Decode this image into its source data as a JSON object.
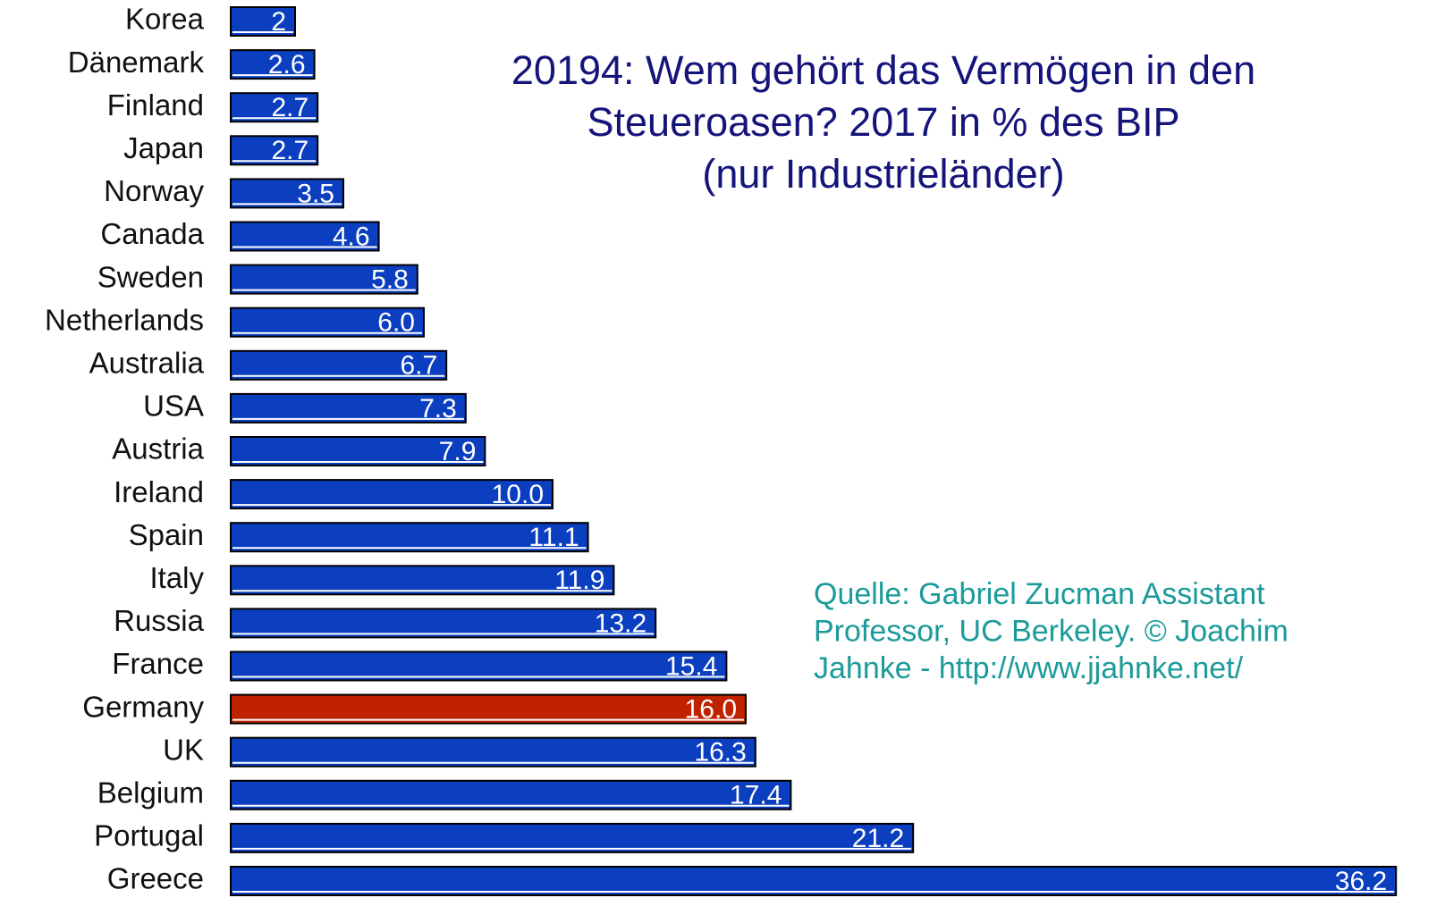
{
  "chart_data": {
    "type": "bar",
    "orientation": "horizontal",
    "title": [
      "20194: Wem gehört das Vermögen in den",
      "Steueroasen? 2017 in % des BIP",
      "(nur Industrieländer)"
    ],
    "source": [
      "Quelle: Gabriel Zucman Assistant",
      "Professor, UC Berkeley.  © Joachim",
      "Jahnke - http://www.jjahnke.net/"
    ],
    "categories": [
      "Korea",
      "Dänemark",
      "Finland",
      "Japan",
      "Norway",
      "Canada",
      "Sweden",
      "Netherlands",
      "Australia",
      "USA",
      "Austria",
      "Ireland",
      "Spain",
      "Italy",
      "Russia",
      "France",
      "Germany",
      "UK",
      "Belgium",
      "Portugal",
      "Greece"
    ],
    "values": [
      2,
      2.6,
      2.7,
      2.7,
      3.5,
      4.6,
      5.8,
      6.0,
      6.7,
      7.3,
      7.9,
      10.0,
      11.1,
      11.9,
      13.2,
      15.4,
      16.0,
      16.3,
      17.4,
      21.2,
      36.2
    ],
    "value_labels": [
      "2",
      "2.6",
      "2.7",
      "2.7",
      "3.5",
      "4.6",
      "5.8",
      "6.0",
      "6.7",
      "7.3",
      "7.9",
      "10.0",
      "11.1",
      "11.9",
      "13.2",
      "15.4",
      "16.0",
      "16.3",
      "17.4",
      "21.2",
      "36.2"
    ],
    "colors": [
      "#0b3fc0",
      "#0b3fc0",
      "#0b3fc0",
      "#0b3fc0",
      "#0b3fc0",
      "#0b3fc0",
      "#0b3fc0",
      "#0b3fc0",
      "#0b3fc0",
      "#0b3fc0",
      "#0b3fc0",
      "#0b3fc0",
      "#0b3fc0",
      "#0b3fc0",
      "#0b3fc0",
      "#0b3fc0",
      "#c02200",
      "#0b3fc0",
      "#0b3fc0",
      "#0b3fc0",
      "#0b3fc0"
    ]
  }
}
